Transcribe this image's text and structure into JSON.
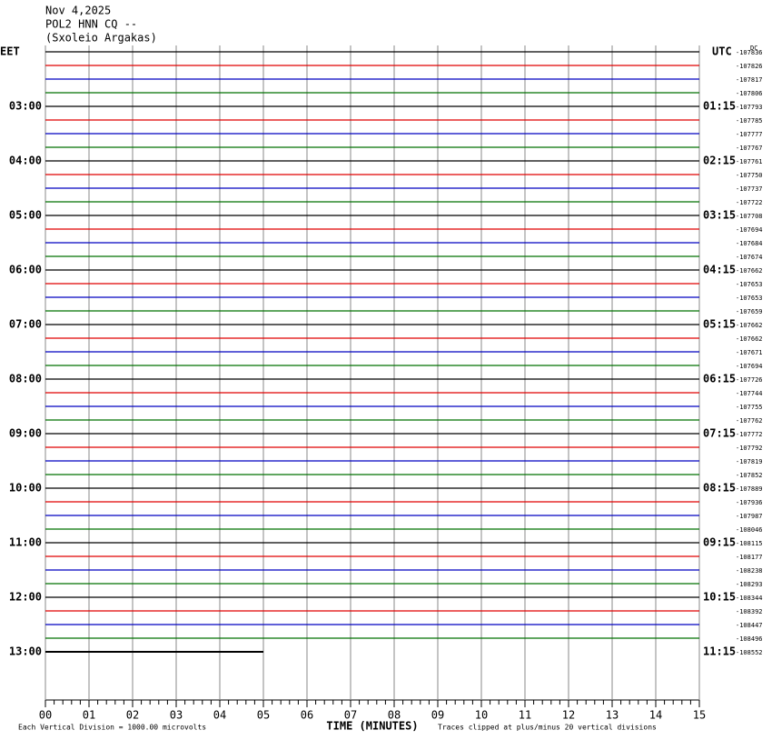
{
  "header": {
    "date": "Nov 4,2025",
    "station": "POL2 HNN CQ --",
    "location": "(Sxoleio Argakas)"
  },
  "left_timezone": "EET",
  "right_timezone": "UTC",
  "dc_label": "DC",
  "left_hours": [
    "03:00",
    "04:00",
    "05:00",
    "06:00",
    "07:00",
    "08:00",
    "09:00",
    "10:00",
    "11:00",
    "12:00",
    "13:00"
  ],
  "right_hours": [
    "01:15",
    "02:15",
    "03:15",
    "04:15",
    "05:15",
    "06:15",
    "07:15",
    "08:15",
    "09:15",
    "10:15",
    "11:15"
  ],
  "trace_offsets": [
    "-107836",
    "-107826",
    "-107817",
    "-107806",
    "-107793",
    "-107785",
    "-107777",
    "-107767",
    "-107761",
    "-107750",
    "-107737",
    "-107722",
    "-107708",
    "-107694",
    "-107684",
    "-107674",
    "-107662",
    "-107653",
    "-107653",
    "-107659",
    "-107662",
    "-107662",
    "-107671",
    "-107694",
    "-107726",
    "-107744",
    "-107755",
    "-107762",
    "-107772",
    "-107792",
    "-107819",
    "-107852",
    "-107889",
    "-107936",
    "-107987",
    "-108046",
    "-108115",
    "-108177",
    "-108238",
    "-108293",
    "-108344",
    "-108392",
    "-108447",
    "-108496",
    "-108552"
  ],
  "trace_colors": [
    "#000000",
    "#e00000",
    "#0000c0",
    "#007000"
  ],
  "x_ticks": [
    "00",
    "01",
    "02",
    "03",
    "04",
    "05",
    "06",
    "07",
    "08",
    "09",
    "10",
    "11",
    "12",
    "13",
    "14",
    "15"
  ],
  "x_label": "TIME (MINUTES)",
  "footer_left": "Each Vertical Division = 1000.00 microvolts",
  "footer_right": "Traces clipped at plus/minus 20 vertical divisions"
}
